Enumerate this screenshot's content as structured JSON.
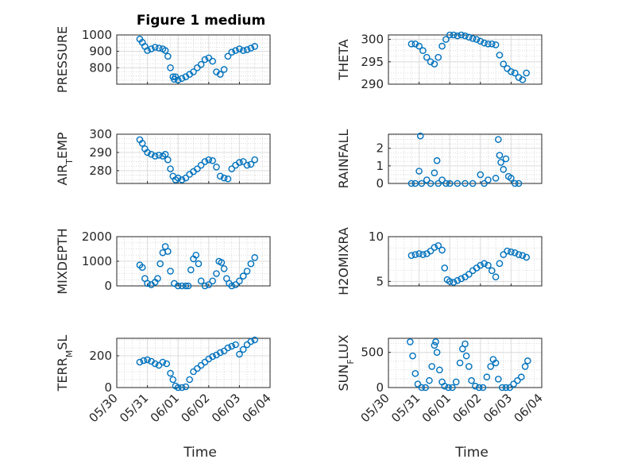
{
  "figure": {
    "title": "Figure 1 medium",
    "xlabel": "Time",
    "x_tick_labels": [
      "05/30",
      "05/31",
      "06/01",
      "06/02",
      "06/03",
      "06/04"
    ],
    "marker_color": "#0072BD",
    "grid": "on (major and minor dotted)"
  },
  "chart_data": [
    {
      "type": "scatter",
      "ylabel": "PRESSURE",
      "ylim": [
        700,
        1000
      ],
      "yticks": [
        800,
        900,
        1000
      ],
      "xlim": [
        "05/30",
        "06/04"
      ],
      "x": [
        "05/30 18:00",
        "05/30 20:00",
        "05/30 22:00",
        "05/31 00:00",
        "05/31 03:00",
        "05/31 06:00",
        "05/31 09:00",
        "05/31 12:00",
        "05/31 14:00",
        "05/31 16:00",
        "05/31 18:00",
        "05/31 20:00",
        "05/31 21:00",
        "05/31 22:00",
        "06/01 00:00",
        "06/01 03:00",
        "06/01 06:00",
        "06/01 09:00",
        "06/01 12:00",
        "06/01 15:00",
        "06/01 18:00",
        "06/01 21:00",
        "06/02 00:00",
        "06/02 03:00",
        "06/02 06:00",
        "06/02 09:00",
        "06/02 12:00",
        "06/02 15:00",
        "06/02 18:00",
        "06/02 21:00",
        "06/03 00:00",
        "06/03 03:00",
        "06/03 06:00",
        "06/03 09:00",
        "06/03 12:00"
      ],
      "y": [
        975,
        955,
        930,
        905,
        915,
        925,
        920,
        915,
        905,
        870,
        800,
        745,
        730,
        745,
        725,
        735,
        745,
        760,
        775,
        800,
        820,
        850,
        860,
        840,
        775,
        760,
        790,
        870,
        895,
        905,
        915,
        905,
        910,
        920,
        930
      ]
    },
    {
      "type": "scatter",
      "ylabel": "THETA",
      "ylim": [
        290,
        301
      ],
      "yticks": [
        290,
        295,
        300
      ],
      "xlim": [
        "05/30",
        "06/04"
      ],
      "x": [
        "05/30 18:00",
        "05/30 21:00",
        "05/31 00:00",
        "05/31 03:00",
        "05/31 06:00",
        "05/31 09:00",
        "05/31 12:00",
        "05/31 15:00",
        "05/31 18:00",
        "05/31 21:00",
        "06/01 00:00",
        "06/01 03:00",
        "06/01 06:00",
        "06/01 09:00",
        "06/01 12:00",
        "06/01 15:00",
        "06/01 18:00",
        "06/01 21:00",
        "06/02 00:00",
        "06/02 03:00",
        "06/02 06:00",
        "06/02 09:00",
        "06/02 12:00",
        "06/02 15:00",
        "06/02 18:00",
        "06/02 21:00",
        "06/03 00:00",
        "06/03 03:00",
        "06/03 06:00",
        "06/03 09:00",
        "06/03 12:00"
      ],
      "y": [
        299,
        299,
        298.5,
        297.5,
        296,
        295,
        294.5,
        296,
        298.5,
        300,
        301,
        301,
        300.8,
        301,
        300.8,
        300.5,
        300.2,
        300,
        299.6,
        299.2,
        299,
        299,
        298.8,
        296.5,
        294.5,
        293.5,
        292.8,
        292.5,
        291.5,
        291,
        292.5
      ]
    },
    {
      "type": "scatter",
      "ylabel": "AIR_TEMP",
      "ylim": [
        273,
        300
      ],
      "yticks": [
        280,
        290,
        300
      ],
      "xlim": [
        "05/30",
        "06/04"
      ],
      "x": [
        "05/30 18:00",
        "05/30 20:00",
        "05/30 22:00",
        "05/31 00:00",
        "05/31 03:00",
        "05/31 06:00",
        "05/31 09:00",
        "05/31 12:00",
        "05/31 14:00",
        "05/31 16:00",
        "05/31 18:00",
        "05/31 20:00",
        "05/31 22:00",
        "06/01 00:00",
        "06/01 03:00",
        "06/01 06:00",
        "06/01 09:00",
        "06/01 12:00",
        "06/01 15:00",
        "06/01 18:00",
        "06/01 21:00",
        "06/02 00:00",
        "06/02 03:00",
        "06/02 06:00",
        "06/02 09:00",
        "06/02 12:00",
        "06/02 15:00",
        "06/02 18:00",
        "06/02 21:00",
        "06/03 00:00",
        "06/03 03:00",
        "06/03 06:00",
        "06/03 09:00",
        "06/03 12:00"
      ],
      "y": [
        297,
        295,
        292,
        290,
        289,
        288,
        288.5,
        288,
        289,
        286,
        281,
        277,
        275,
        276,
        275,
        276,
        278,
        279.5,
        281,
        283,
        285,
        286,
        285.5,
        282,
        277,
        276,
        275.5,
        281,
        283,
        284.5,
        285,
        283,
        283.5,
        286
      ]
    },
    {
      "type": "scatter",
      "ylabel": "RAINFALL",
      "ylim": [
        0,
        2.8
      ],
      "yticks": [
        0,
        1,
        2
      ],
      "xlim": [
        "05/30",
        "06/04"
      ],
      "x": [
        "05/30 18:00",
        "05/30 21:00",
        "05/31 00:00",
        "05/31 01:00",
        "05/31 02:00",
        "05/31 06:00",
        "05/31 09:00",
        "05/31 12:00",
        "05/31 14:00",
        "05/31 15:00",
        "05/31 18:00",
        "05/31 21:00",
        "06/01 00:00",
        "06/01 06:00",
        "06/01 12:00",
        "06/01 18:00",
        "06/02 00:00",
        "06/02 03:00",
        "06/02 06:00",
        "06/02 12:00",
        "06/02 14:00",
        "06/02 15:00",
        "06/02 16:00",
        "06/02 18:00",
        "06/02 20:00",
        "06/02 22:00",
        "06/03 00:00",
        "06/03 03:00",
        "06/03 06:00"
      ],
      "y": [
        0,
        0,
        0.7,
        2.7,
        0,
        0.2,
        0,
        0.6,
        1.3,
        0,
        0.2,
        0,
        0,
        0,
        0,
        0,
        0.5,
        0,
        0.2,
        0.3,
        2.5,
        1.6,
        1.2,
        0.8,
        1.4,
        0.4,
        0.3,
        0,
        0
      ]
    },
    {
      "type": "scatter",
      "ylabel": "MIXDEPTH",
      "ylim": [
        0,
        2000
      ],
      "yticks": [
        0,
        1000,
        2000
      ],
      "xlim": [
        "05/30",
        "06/04"
      ],
      "x": [
        "05/30 18:00",
        "05/30 20:00",
        "05/30 22:00",
        "05/31 00:00",
        "05/31 03:00",
        "05/31 06:00",
        "05/31 08:00",
        "05/31 10:00",
        "05/31 12:00",
        "05/31 14:00",
        "05/31 16:00",
        "05/31 18:00",
        "05/31 21:00",
        "06/01 00:00",
        "06/01 03:00",
        "06/01 06:00",
        "06/01 08:00",
        "06/01 10:00",
        "06/01 12:00",
        "06/01 14:00",
        "06/01 16:00",
        "06/01 18:00",
        "06/01 21:00",
        "06/02 00:00",
        "06/02 03:00",
        "06/02 06:00",
        "06/02 08:00",
        "06/02 10:00",
        "06/02 12:00",
        "06/02 14:00",
        "06/02 16:00",
        "06/02 18:00",
        "06/02 21:00",
        "06/03 00:00",
        "06/03 03:00",
        "06/03 06:00",
        "06/03 09:00",
        "06/03 12:00"
      ],
      "y": [
        850,
        750,
        300,
        100,
        50,
        150,
        300,
        900,
        1350,
        1600,
        1400,
        600,
        100,
        0,
        0,
        0,
        0,
        650,
        1100,
        1250,
        900,
        200,
        0,
        50,
        200,
        500,
        1000,
        950,
        700,
        300,
        100,
        0,
        50,
        200,
        400,
        600,
        900,
        1150
      ]
    },
    {
      "type": "scatter",
      "ylabel": "H2OMIXRA",
      "ylim": [
        4.5,
        10
      ],
      "yticks": [
        5,
        10
      ],
      "xlim": [
        "05/30",
        "06/04"
      ],
      "x": [
        "05/30 18:00",
        "05/30 21:00",
        "05/31 00:00",
        "05/31 03:00",
        "05/31 06:00",
        "05/31 09:00",
        "05/31 12:00",
        "05/31 15:00",
        "05/31 18:00",
        "05/31 20:00",
        "05/31 22:00",
        "06/01 00:00",
        "06/01 03:00",
        "06/01 06:00",
        "06/01 09:00",
        "06/01 12:00",
        "06/01 15:00",
        "06/01 18:00",
        "06/01 21:00",
        "06/02 00:00",
        "06/02 03:00",
        "06/02 06:00",
        "06/02 09:00",
        "06/02 12:00",
        "06/02 15:00",
        "06/02 18:00",
        "06/02 21:00",
        "06/03 00:00",
        "06/03 03:00",
        "06/03 06:00",
        "06/03 09:00",
        "06/03 12:00"
      ],
      "y": [
        7.9,
        8,
        8.1,
        8,
        8.1,
        8.4,
        8.8,
        9,
        8.5,
        6.5,
        5.2,
        5,
        4.9,
        5.1,
        5.3,
        5.5,
        5.8,
        6.2,
        6.5,
        6.8,
        7,
        6.8,
        6.2,
        5.5,
        7,
        8,
        8.4,
        8.3,
        8.2,
        8,
        7.9,
        7.7
      ]
    },
    {
      "type": "scatter",
      "ylabel": "TERR_MSL",
      "ylim": [
        0,
        310
      ],
      "yticks": [
        0,
        200
      ],
      "xlim": [
        "05/30",
        "06/04"
      ],
      "x": [
        "05/30 18:00",
        "05/30 21:00",
        "05/31 00:00",
        "05/31 03:00",
        "05/31 06:00",
        "05/31 09:00",
        "05/31 12:00",
        "05/31 15:00",
        "05/31 18:00",
        "05/31 20:00",
        "05/31 22:00",
        "06/01 00:00",
        "06/01 03:00",
        "06/01 06:00",
        "06/01 09:00",
        "06/01 12:00",
        "06/01 15:00",
        "06/01 18:00",
        "06/01 21:00",
        "06/02 00:00",
        "06/02 03:00",
        "06/02 06:00",
        "06/02 09:00",
        "06/02 12:00",
        "06/02 15:00",
        "06/02 18:00",
        "06/02 21:00",
        "06/03 00:00",
        "06/03 03:00",
        "06/03 06:00",
        "06/03 09:00",
        "06/03 12:00"
      ],
      "y": [
        160,
        170,
        175,
        165,
        150,
        140,
        160,
        150,
        90,
        50,
        10,
        0,
        0,
        5,
        50,
        100,
        120,
        140,
        160,
        180,
        195,
        205,
        220,
        230,
        250,
        260,
        270,
        210,
        240,
        270,
        290,
        300
      ]
    },
    {
      "type": "scatter",
      "ylabel": "SUN_FLUX",
      "ylim": [
        0,
        700
      ],
      "yticks": [
        0,
        500
      ],
      "xlim": [
        "05/30",
        "06/04"
      ],
      "x": [
        "05/30 17:00",
        "05/30 19:00",
        "05/30 21:00",
        "05/30 23:00",
        "05/31 02:00",
        "05/31 05:00",
        "05/31 08:00",
        "05/31 10:00",
        "05/31 12:00",
        "05/31 13:00",
        "05/31 14:00",
        "05/31 16:00",
        "05/31 18:00",
        "05/31 20:00",
        "05/31 23:00",
        "06/01 02:00",
        "06/01 05:00",
        "06/01 08:00",
        "06/01 10:00",
        "06/01 12:00",
        "06/01 13:00",
        "06/01 15:00",
        "06/01 17:00",
        "06/01 20:00",
        "06/01 23:00",
        "06/02 02:00",
        "06/02 05:00",
        "06/02 08:00",
        "06/02 10:00",
        "06/02 12:00",
        "06/02 14:00",
        "06/02 17:00",
        "06/02 20:00",
        "06/02 23:00",
        "06/03 02:00",
        "06/03 05:00",
        "06/03 08:00",
        "06/03 11:00",
        "06/03 13:00"
      ],
      "y": [
        650,
        450,
        200,
        50,
        0,
        0,
        100,
        300,
        600,
        650,
        500,
        250,
        80,
        20,
        0,
        0,
        80,
        350,
        550,
        620,
        450,
        300,
        100,
        20,
        0,
        0,
        150,
        300,
        400,
        350,
        120,
        0,
        0,
        0,
        50,
        100,
        150,
        300,
        380
      ]
    }
  ]
}
